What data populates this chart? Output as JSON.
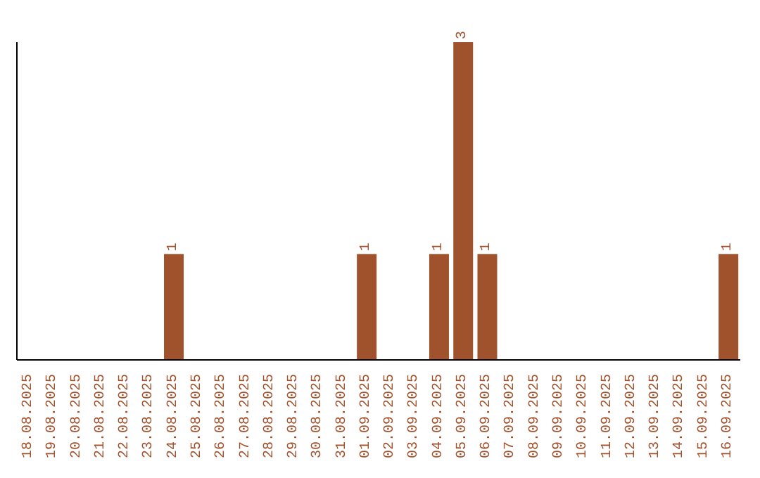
{
  "chart_data": {
    "type": "bar",
    "categories": [
      "18.08.2025",
      "19.08.2025",
      "20.08.2025",
      "21.08.2025",
      "22.08.2025",
      "23.08.2025",
      "24.08.2025",
      "25.08.2025",
      "26.08.2025",
      "27.08.2025",
      "28.08.2025",
      "29.08.2025",
      "30.08.2025",
      "31.08.2025",
      "01.09.2025",
      "02.09.2025",
      "03.09.2025",
      "04.09.2025",
      "05.09.2025",
      "06.09.2025",
      "07.09.2025",
      "08.09.2025",
      "09.09.2025",
      "10.09.2025",
      "11.09.2025",
      "12.09.2025",
      "13.09.2025",
      "14.09.2025",
      "15.09.2025",
      "16.09.2025"
    ],
    "values": [
      0,
      0,
      0,
      0,
      0,
      0,
      1,
      0,
      0,
      0,
      0,
      0,
      0,
      0,
      1,
      0,
      0,
      1,
      3,
      1,
      0,
      0,
      0,
      0,
      0,
      0,
      0,
      0,
      0,
      1
    ],
    "value_labels": [
      null,
      null,
      null,
      null,
      null,
      null,
      "1",
      null,
      null,
      null,
      null,
      null,
      null,
      null,
      "1",
      null,
      null,
      "1",
      "3",
      "1",
      null,
      null,
      null,
      null,
      null,
      null,
      null,
      null,
      null,
      "1"
    ],
    "color": "#a0522d",
    "tick_labels": "x"
  }
}
